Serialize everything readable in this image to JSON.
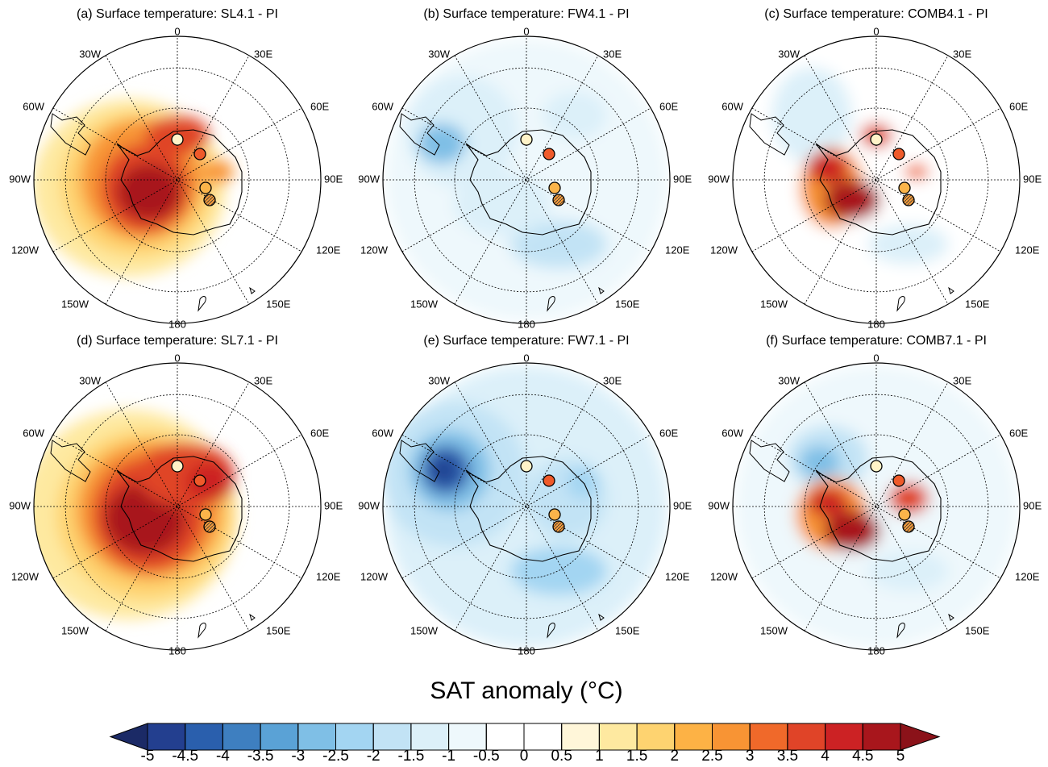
{
  "panels": [
    {
      "title": "(a) Surface temperature: SL4.1 - PI"
    },
    {
      "title": "(b) Surface temperature: FW4.1 - PI"
    },
    {
      "title": "(c) Surface temperature: COMB4.1 - PI"
    },
    {
      "title": "(d) Surface temperature: SL7.1 - PI"
    },
    {
      "title": "(e) Surface temperature: FW7.1 - PI"
    },
    {
      "title": "(f) Surface temperature: COMB7.1 - PI"
    }
  ],
  "longitude_labels": [
    "0",
    "30E",
    "60E",
    "90E",
    "120E",
    "150E",
    "180",
    "150W",
    "120W",
    "90W",
    "60W",
    "30W"
  ],
  "colorbar": {
    "label": "SAT anomaly (°C)",
    "ticks": [
      -5,
      -4.5,
      -4,
      -3.5,
      -3,
      -2.5,
      -2,
      -1.5,
      -1,
      -0.5,
      0,
      0.5,
      1,
      1.5,
      2,
      2.5,
      3,
      3.5,
      4,
      4.5,
      5
    ],
    "colors": [
      "#233f8f",
      "#2a5fad",
      "#3e7fc0",
      "#5aa2d6",
      "#7fbfe6",
      "#a3d5f2",
      "#c2e3f5",
      "#dcf0f9",
      "#eef8fc",
      "#ffffff",
      "#ffffff",
      "#fff6d9",
      "#fee9a0",
      "#fed370",
      "#fdb245",
      "#f89434",
      "#f0692a",
      "#e04428",
      "#cc2224",
      "#a8161c"
    ],
    "under_color": "#1b2a66",
    "over_color": "#8b1219"
  }
}
